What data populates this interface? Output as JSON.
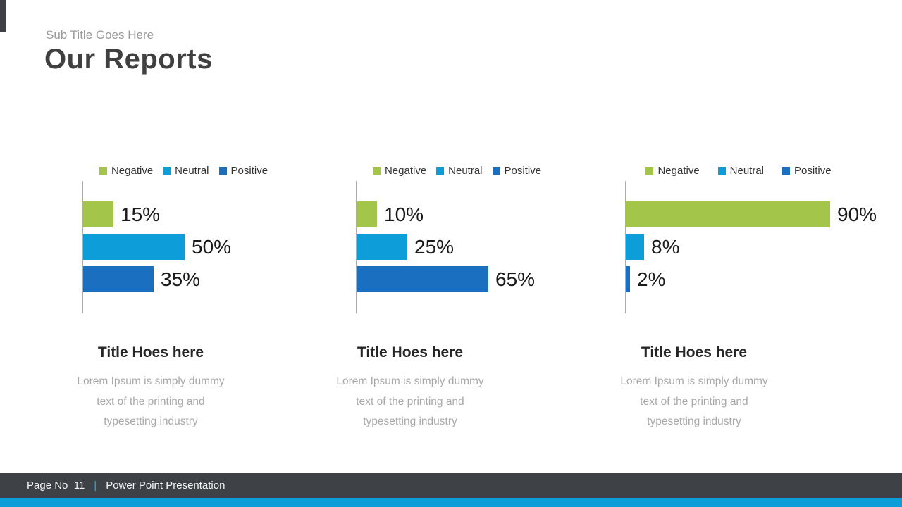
{
  "slide": {
    "subtitle": "Sub Title Goes Here",
    "title": "Our Reports"
  },
  "chart_data": [
    {
      "type": "bar",
      "orientation": "horizontal",
      "title": "",
      "categories": [
        "Negative",
        "Neutral",
        "Positive"
      ],
      "values": [
        15,
        50,
        35
      ],
      "labels": [
        "15%",
        "50%",
        "35%"
      ],
      "colors": [
        "#a3c64a",
        "#0d9ed9",
        "#1a6fc0"
      ],
      "xlim": [
        0,
        100
      ],
      "grid": false,
      "legend_position": "top"
    },
    {
      "type": "bar",
      "orientation": "horizontal",
      "title": "",
      "categories": [
        "Negative",
        "Neutral",
        "Positive"
      ],
      "values": [
        10,
        25,
        65
      ],
      "labels": [
        "10%",
        "25%",
        "65%"
      ],
      "colors": [
        "#a3c64a",
        "#0d9ed9",
        "#1a6fc0"
      ],
      "xlim": [
        0,
        100
      ],
      "grid": false,
      "legend_position": "top"
    },
    {
      "type": "bar",
      "orientation": "horizontal",
      "title": "",
      "categories": [
        "Negative",
        "Neutral",
        "Positive"
      ],
      "values": [
        90,
        8,
        2
      ],
      "labels": [
        "90%",
        "8%",
        "2%"
      ],
      "colors": [
        "#a3c64a",
        "#0d9ed9",
        "#1a6fc0"
      ],
      "xlim": [
        0,
        100
      ],
      "grid": false,
      "legend_position": "top"
    }
  ],
  "cards": [
    {
      "title": "Title Hoes here",
      "body": "Lorem Ipsum is simply dummy\ntext of the printing and\ntypesetting industry"
    },
    {
      "title": "Title Hoes here",
      "body": "Lorem Ipsum is simply dummy\ntext of the printing and\ntypesetting industry"
    },
    {
      "title": "Title Hoes here",
      "body": "Lorem Ipsum is simply dummy\ntext of the printing and\ntypesetting industry"
    }
  ],
  "footer": {
    "page_text": "Page No  11",
    "separator": "|",
    "presentation": "Power Point Presentation",
    "bar_color": "#3e4146",
    "accent_color": "#0d9ed9",
    "separator_color": "#2ea9dc"
  }
}
